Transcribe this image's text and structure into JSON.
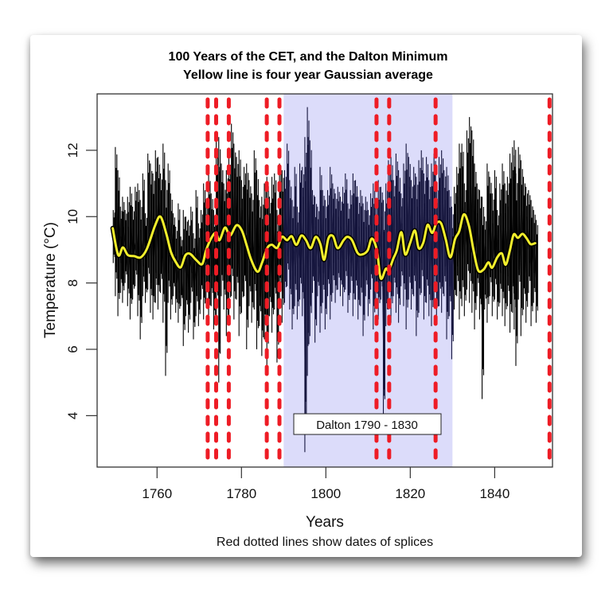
{
  "chart_data": {
    "type": "line",
    "title": "100 Years of the CET, and the Dalton Minimum",
    "subtitle": "Yellow line is four year Gaussian average",
    "xlabel": "Years",
    "ylabel": "Temperature (°C)",
    "caption": "Red dotted lines show dates of splices",
    "xlim": [
      1745.8,
      1853.7
    ],
    "ylim": [
      2.45,
      13.7
    ],
    "x_ticks": [
      1760,
      1780,
      1800,
      1820,
      1840
    ],
    "y_ticks": [
      4,
      6,
      8,
      10,
      12
    ],
    "grid": false,
    "shaded_region": {
      "label": "Dalton 1790 - 1830",
      "x_start": 1790,
      "x_end": 1830,
      "color": "#dcdcfa"
    },
    "splice_years": [
      1772,
      1774,
      1777,
      1786,
      1789,
      1812,
      1815,
      1826,
      1853
    ],
    "colors": {
      "raw": "#000000",
      "raw_in_dalton": "#14143c",
      "smooth": "#f2ee2c",
      "smooth_outline": "#000000",
      "splice": "#ee1c25"
    },
    "series": [
      {
        "name": "CET monthly-derived spikes (year, low, high)",
        "style": "vertical-spikes",
        "values": [
          [
            1749.8,
            8.6,
            10.2
          ],
          [
            1750.3,
            7.6,
            12.1
          ],
          [
            1750.9,
            7.0,
            11.4
          ],
          [
            1751.5,
            7.7,
            10.3
          ],
          [
            1752.0,
            7.4,
            10.6
          ],
          [
            1752.6,
            8.0,
            10.2
          ],
          [
            1753.2,
            7.3,
            10.6
          ],
          [
            1753.8,
            6.9,
            10.9
          ],
          [
            1754.4,
            7.5,
            10.3
          ],
          [
            1755.0,
            7.9,
            10.9
          ],
          [
            1755.6,
            7.0,
            11.0
          ],
          [
            1756.2,
            6.3,
            10.5
          ],
          [
            1756.8,
            7.6,
            11.3
          ],
          [
            1757.4,
            7.4,
            10.1
          ],
          [
            1758.0,
            7.8,
            11.9
          ],
          [
            1758.6,
            7.1,
            11.6
          ],
          [
            1759.2,
            6.9,
            11.3
          ],
          [
            1759.8,
            7.4,
            12.0
          ],
          [
            1760.4,
            7.2,
            11.8
          ],
          [
            1761.0,
            7.7,
            11.3
          ],
          [
            1761.6,
            6.8,
            12.2
          ],
          [
            1762.2,
            5.2,
            11.1
          ],
          [
            1762.8,
            7.4,
            11.6
          ],
          [
            1763.4,
            6.9,
            10.7
          ],
          [
            1764.0,
            7.6,
            10.1
          ],
          [
            1764.6,
            7.1,
            9.7
          ],
          [
            1765.2,
            6.8,
            10.4
          ],
          [
            1765.8,
            7.3,
            9.4
          ],
          [
            1766.4,
            6.1,
            10.2
          ],
          [
            1767.0,
            7.0,
            10.0
          ],
          [
            1767.6,
            6.5,
            9.9
          ],
          [
            1768.2,
            7.4,
            10.3
          ],
          [
            1768.8,
            6.3,
            9.5
          ],
          [
            1769.4,
            7.0,
            10.8
          ],
          [
            1770.0,
            6.7,
            9.8
          ],
          [
            1770.6,
            7.5,
            10.2
          ],
          [
            1771.2,
            6.9,
            11.0
          ],
          [
            1771.8,
            7.4,
            10.5
          ],
          [
            1772.4,
            6.8,
            11.3
          ],
          [
            1773.0,
            7.3,
            10.7
          ],
          [
            1773.6,
            6.6,
            10.2
          ],
          [
            1774.2,
            7.0,
            12.3
          ],
          [
            1774.8,
            5.0,
            12.4
          ],
          [
            1775.4,
            7.6,
            11.6
          ],
          [
            1776.0,
            7.2,
            11.0
          ],
          [
            1776.6,
            6.4,
            11.4
          ],
          [
            1777.2,
            7.0,
            11.8
          ],
          [
            1777.8,
            7.6,
            12.8
          ],
          [
            1778.4,
            6.9,
            12.2
          ],
          [
            1779.0,
            7.5,
            11.8
          ],
          [
            1779.6,
            6.4,
            12.0
          ],
          [
            1780.2,
            7.1,
            11.1
          ],
          [
            1780.8,
            7.6,
            11.5
          ],
          [
            1781.4,
            6.0,
            11.6
          ],
          [
            1782.0,
            7.3,
            11.1
          ],
          [
            1782.6,
            6.8,
            10.7
          ],
          [
            1783.2,
            7.2,
            12.0
          ],
          [
            1783.8,
            6.0,
            11.4
          ],
          [
            1784.4,
            6.7,
            10.5
          ],
          [
            1785.0,
            5.8,
            10.6
          ],
          [
            1785.6,
            6.3,
            11.0
          ],
          [
            1786.2,
            5.5,
            11.2
          ],
          [
            1786.8,
            7.0,
            10.6
          ],
          [
            1787.4,
            6.5,
            11.2
          ],
          [
            1788.0,
            7.2,
            11.3
          ],
          [
            1788.6,
            5.6,
            10.2
          ],
          [
            1789.2,
            7.5,
            11.6
          ],
          [
            1789.8,
            6.8,
            11.4
          ],
          [
            1790.4,
            7.4,
            11.4
          ],
          [
            1791.0,
            7.9,
            12.2
          ],
          [
            1791.6,
            7.2,
            11.1
          ],
          [
            1792.2,
            6.6,
            10.5
          ],
          [
            1792.8,
            7.3,
            11.5
          ],
          [
            1793.4,
            6.9,
            10.3
          ],
          [
            1794.0,
            7.5,
            11.6
          ],
          [
            1794.6,
            7.0,
            11.5
          ],
          [
            1795.2,
            2.9,
            12.4
          ],
          [
            1795.8,
            5.2,
            13.3
          ],
          [
            1796.4,
            6.4,
            12.3
          ],
          [
            1797.0,
            7.7,
            10.8
          ],
          [
            1797.6,
            6.2,
            10.6
          ],
          [
            1798.2,
            7.6,
            10.3
          ],
          [
            1798.8,
            6.5,
            11.5
          ],
          [
            1799.4,
            7.4,
            10.8
          ],
          [
            1800.0,
            6.6,
            10.5
          ],
          [
            1800.6,
            7.6,
            10.8
          ],
          [
            1801.2,
            6.9,
            11.5
          ],
          [
            1801.8,
            7.7,
            11.0
          ],
          [
            1802.4,
            7.4,
            10.7
          ],
          [
            1803.0,
            7.8,
            10.9
          ],
          [
            1803.6,
            7.6,
            10.6
          ],
          [
            1804.2,
            7.3,
            10.9
          ],
          [
            1804.8,
            7.8,
            11.3
          ],
          [
            1805.4,
            7.1,
            10.4
          ],
          [
            1806.0,
            7.7,
            10.8
          ],
          [
            1806.6,
            7.0,
            11.3
          ],
          [
            1807.2,
            7.5,
            11.1
          ],
          [
            1807.8,
            6.9,
            10.6
          ],
          [
            1808.4,
            7.3,
            10.8
          ],
          [
            1809.0,
            6.4,
            10.4
          ],
          [
            1809.6,
            7.6,
            10.6
          ],
          [
            1810.2,
            7.0,
            10.2
          ],
          [
            1810.8,
            7.8,
            10.7
          ],
          [
            1811.4,
            6.6,
            11.0
          ],
          [
            1812.0,
            7.3,
            10.5
          ],
          [
            1812.6,
            6.9,
            11.1
          ],
          [
            1813.2,
            7.5,
            10.9
          ],
          [
            1813.8,
            3.7,
            10.5
          ],
          [
            1814.4,
            6.7,
            11.0
          ],
          [
            1815.0,
            7.2,
            11.7
          ],
          [
            1815.6,
            6.8,
            11.8
          ],
          [
            1816.2,
            7.6,
            11.1
          ],
          [
            1816.8,
            7.1,
            11.9
          ],
          [
            1817.4,
            6.8,
            11.4
          ],
          [
            1818.0,
            7.9,
            10.7
          ],
          [
            1818.6,
            7.3,
            11.6
          ],
          [
            1819.2,
            6.6,
            12.2
          ],
          [
            1819.8,
            7.5,
            11.8
          ],
          [
            1820.4,
            7.2,
            11.1
          ],
          [
            1821.0,
            7.6,
            11.5
          ],
          [
            1821.6,
            6.4,
            11.2
          ],
          [
            1822.2,
            7.1,
            11.7
          ],
          [
            1822.8,
            7.7,
            12.0
          ],
          [
            1823.4,
            6.9,
            11.3
          ],
          [
            1824.0,
            7.4,
            11.8
          ],
          [
            1824.6,
            7.0,
            11.1
          ],
          [
            1825.2,
            6.7,
            11.6
          ],
          [
            1825.8,
            7.5,
            11.9
          ],
          [
            1826.4,
            6.8,
            11.0
          ],
          [
            1827.0,
            7.3,
            11.8
          ],
          [
            1827.6,
            7.1,
            12.0
          ],
          [
            1828.2,
            7.6,
            11.4
          ],
          [
            1828.8,
            6.3,
            11.5
          ],
          [
            1829.4,
            7.0,
            10.8
          ],
          [
            1830.0,
            5.7,
            10.3
          ],
          [
            1830.6,
            7.2,
            10.9
          ],
          [
            1831.2,
            7.6,
            11.5
          ],
          [
            1831.8,
            6.9,
            12.2
          ],
          [
            1832.4,
            7.3,
            12.2
          ],
          [
            1833.0,
            7.0,
            11.0
          ],
          [
            1833.6,
            7.8,
            12.6
          ],
          [
            1834.2,
            7.4,
            13.0
          ],
          [
            1834.8,
            7.1,
            12.6
          ],
          [
            1835.4,
            6.6,
            11.6
          ],
          [
            1836.0,
            7.6,
            11.0
          ],
          [
            1836.6,
            6.9,
            10.8
          ],
          [
            1837.2,
            4.5,
            10.6
          ],
          [
            1837.8,
            7.2,
            10.0
          ],
          [
            1838.4,
            6.8,
            11.6
          ],
          [
            1839.0,
            7.6,
            11.2
          ],
          [
            1839.6,
            7.0,
            10.7
          ],
          [
            1840.2,
            7.5,
            11.4
          ],
          [
            1840.8,
            6.9,
            10.2
          ],
          [
            1841.4,
            7.4,
            11.0
          ],
          [
            1842.0,
            7.0,
            11.6
          ],
          [
            1842.6,
            6.7,
            11.0
          ],
          [
            1843.2,
            7.3,
            11.2
          ],
          [
            1843.8,
            6.5,
            11.9
          ],
          [
            1844.4,
            7.1,
            12.1
          ],
          [
            1844.8,
            6.6,
            12.3
          ],
          [
            1845.2,
            5.5,
            11.3
          ],
          [
            1845.8,
            7.5,
            12.1
          ],
          [
            1846.4,
            6.4,
            11.7
          ],
          [
            1847.0,
            7.2,
            11.2
          ],
          [
            1847.6,
            6.8,
            10.9
          ],
          [
            1848.2,
            7.7,
            10.8
          ],
          [
            1848.8,
            6.7,
            10.5
          ],
          [
            1849.4,
            7.4,
            10.2
          ],
          [
            1850.0,
            6.8,
            9.9
          ]
        ]
      },
      {
        "name": "Four year Gaussian average",
        "style": "smooth-line",
        "x": [
          1749.5,
          1750.8,
          1751.9,
          1753.1,
          1754.6,
          1756.1,
          1757.6,
          1759.5,
          1760.8,
          1762.2,
          1763.3,
          1764.4,
          1765.6,
          1766.7,
          1767.8,
          1769.3,
          1770.7,
          1771.6,
          1772.8,
          1773.9,
          1774.8,
          1776.1,
          1777.3,
          1778.8,
          1780.1,
          1781.2,
          1782.3,
          1783.8,
          1784.9,
          1786.1,
          1787.2,
          1788.5,
          1789.6,
          1790.8,
          1791.9,
          1793.0,
          1794.2,
          1795.3,
          1796.4,
          1797.6,
          1798.7,
          1799.6,
          1800.6,
          1801.7,
          1802.8,
          1804.2,
          1805.1,
          1806.2,
          1807.5,
          1808.6,
          1809.9,
          1810.9,
          1812.1,
          1813.0,
          1814.2,
          1814.9,
          1816.0,
          1816.8,
          1817.9,
          1818.8,
          1820.0,
          1821.1,
          1822.0,
          1823.1,
          1824.1,
          1825.2,
          1826.2,
          1827.3,
          1828.4,
          1829.5,
          1830.6,
          1831.6,
          1832.7,
          1833.9,
          1835.0,
          1836.1,
          1837.4,
          1838.5,
          1839.4,
          1840.6,
          1841.7,
          1842.6,
          1843.6,
          1844.5,
          1845.5,
          1846.6,
          1847.6,
          1848.5,
          1849.6
        ],
        "values": [
          9.65,
          8.84,
          9.07,
          8.84,
          8.81,
          8.77,
          9.03,
          9.72,
          10.0,
          9.48,
          8.93,
          8.64,
          8.47,
          8.83,
          8.88,
          8.69,
          8.57,
          8.98,
          9.34,
          9.51,
          9.29,
          9.67,
          9.43,
          9.74,
          9.58,
          9.15,
          8.7,
          8.34,
          8.62,
          9.05,
          9.15,
          9.06,
          9.39,
          9.29,
          9.41,
          9.15,
          9.43,
          9.29,
          9.05,
          9.39,
          9.17,
          8.7,
          9.34,
          9.41,
          9.05,
          9.29,
          9.39,
          9.29,
          8.91,
          8.86,
          8.98,
          9.34,
          8.98,
          8.14,
          8.43,
          8.38,
          8.74,
          8.98,
          9.53,
          8.86,
          9.22,
          9.58,
          9.05,
          9.22,
          9.75,
          9.51,
          9.8,
          9.8,
          9.32,
          8.77,
          9.32,
          9.56,
          10.07,
          9.72,
          8.98,
          8.38,
          8.41,
          8.62,
          8.46,
          8.77,
          8.89,
          8.55,
          8.98,
          9.46,
          9.36,
          9.48,
          9.34,
          9.17,
          9.2
        ]
      }
    ]
  }
}
